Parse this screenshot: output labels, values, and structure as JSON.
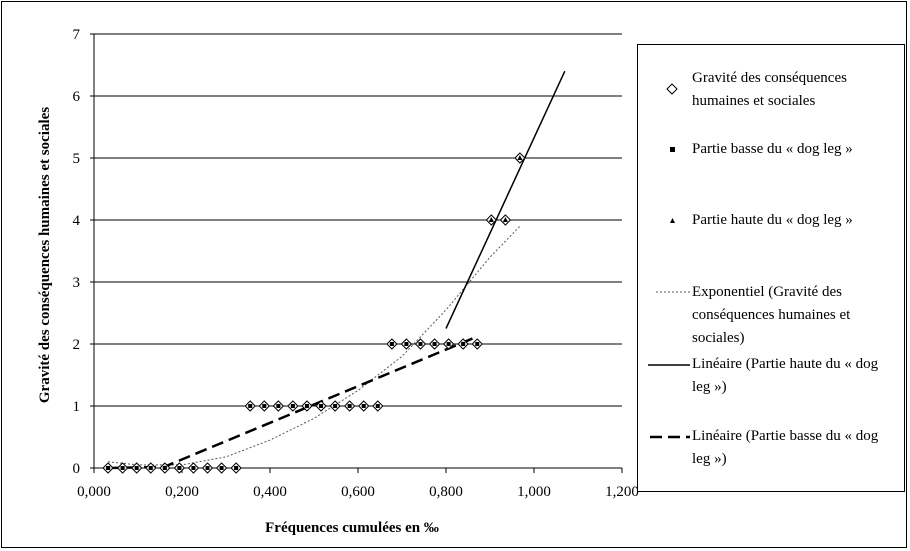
{
  "chart_data": {
    "type": "scatter",
    "title": "",
    "xlabel": "Fréquences cumulées en ‰",
    "ylabel": "Gravité des conséquences humaines et sociales",
    "xlim": [
      0,
      1.2
    ],
    "ylim": [
      0,
      7
    ],
    "x_ticks": [
      "0,000",
      "0,200",
      "0,400",
      "0,600",
      "0,800",
      "1,000",
      "1,200"
    ],
    "y_ticks": [
      "0",
      "1",
      "2",
      "3",
      "4",
      "5",
      "6",
      "7"
    ],
    "grid": "horizontal",
    "legend_position": "right",
    "series": [
      {
        "name": "Gravité des conséquences humaines et sociales",
        "marker": "diamond",
        "points": [
          [
            0.032,
            0
          ],
          [
            0.065,
            0
          ],
          [
            0.097,
            0
          ],
          [
            0.129,
            0
          ],
          [
            0.161,
            0
          ],
          [
            0.194,
            0
          ],
          [
            0.226,
            0
          ],
          [
            0.258,
            0
          ],
          [
            0.29,
            0
          ],
          [
            0.323,
            0
          ],
          [
            0.355,
            1
          ],
          [
            0.387,
            1
          ],
          [
            0.419,
            1
          ],
          [
            0.452,
            1
          ],
          [
            0.484,
            1
          ],
          [
            0.516,
            1
          ],
          [
            0.548,
            1
          ],
          [
            0.581,
            1
          ],
          [
            0.613,
            1
          ],
          [
            0.645,
            1
          ],
          [
            0.677,
            2
          ],
          [
            0.71,
            2
          ],
          [
            0.742,
            2
          ],
          [
            0.774,
            2
          ],
          [
            0.806,
            2
          ],
          [
            0.839,
            2
          ],
          [
            0.871,
            2
          ],
          [
            0.903,
            4
          ],
          [
            0.935,
            4
          ],
          [
            0.968,
            5
          ]
        ]
      },
      {
        "name": "Partie basse du « dog leg »",
        "marker": "square",
        "points": [
          [
            0.032,
            0
          ],
          [
            0.065,
            0
          ],
          [
            0.097,
            0
          ],
          [
            0.129,
            0
          ],
          [
            0.161,
            0
          ],
          [
            0.194,
            0
          ],
          [
            0.226,
            0
          ],
          [
            0.258,
            0
          ],
          [
            0.29,
            0
          ],
          [
            0.323,
            0
          ],
          [
            0.355,
            1
          ],
          [
            0.387,
            1
          ],
          [
            0.419,
            1
          ],
          [
            0.452,
            1
          ],
          [
            0.484,
            1
          ],
          [
            0.516,
            1
          ],
          [
            0.548,
            1
          ],
          [
            0.581,
            1
          ],
          [
            0.613,
            1
          ],
          [
            0.645,
            1
          ],
          [
            0.677,
            2
          ],
          [
            0.71,
            2
          ],
          [
            0.742,
            2
          ],
          [
            0.774,
            2
          ],
          [
            0.806,
            2
          ],
          [
            0.839,
            2
          ],
          [
            0.871,
            2
          ]
        ]
      },
      {
        "name": "Partie haute du « dog leg »",
        "marker": "triangle",
        "points": [
          [
            0.903,
            4
          ],
          [
            0.935,
            4
          ],
          [
            0.968,
            5
          ]
        ]
      },
      {
        "name": "Exponentiel (Gravité des conséquences humaines et sociales)",
        "line_style": "dotted",
        "points": [
          [
            0.032,
            0.1
          ],
          [
            0.1,
            0.05
          ],
          [
            0.2,
            0.05
          ],
          [
            0.3,
            0.18
          ],
          [
            0.4,
            0.45
          ],
          [
            0.5,
            0.8
          ],
          [
            0.6,
            1.25
          ],
          [
            0.7,
            1.8
          ],
          [
            0.8,
            2.55
          ],
          [
            0.9,
            3.4
          ],
          [
            0.968,
            3.9
          ]
        ]
      },
      {
        "name": "Linéaire (Partie haute du « dog leg »)",
        "line_style": "solid",
        "points": [
          [
            0.8,
            2.25
          ],
          [
            1.07,
            6.4
          ]
        ]
      },
      {
        "name": "Linéaire (Partie basse du « dog leg »)",
        "line_style": "dashed",
        "points": [
          [
            0.032,
            0
          ],
          [
            0.16,
            0.02
          ],
          [
            0.871,
            2.12
          ]
        ]
      }
    ]
  },
  "legend": {
    "items": [
      {
        "label": "Gravité des conséquences humaines et sociales",
        "symbol": "diamond"
      },
      {
        "label": "Partie basse du « dog leg »",
        "symbol": "square"
      },
      {
        "label": "Partie haute du « dog leg »",
        "symbol": "triangle"
      },
      {
        "label": "Exponentiel (Gravité des conséquences humaines et sociales)",
        "symbol": "dotted-line"
      },
      {
        "label": "Linéaire (Partie haute du « dog leg »)",
        "symbol": "solid-line"
      },
      {
        "label": "Linéaire (Partie basse du « dog leg »)",
        "symbol": "dashed-line"
      }
    ]
  }
}
